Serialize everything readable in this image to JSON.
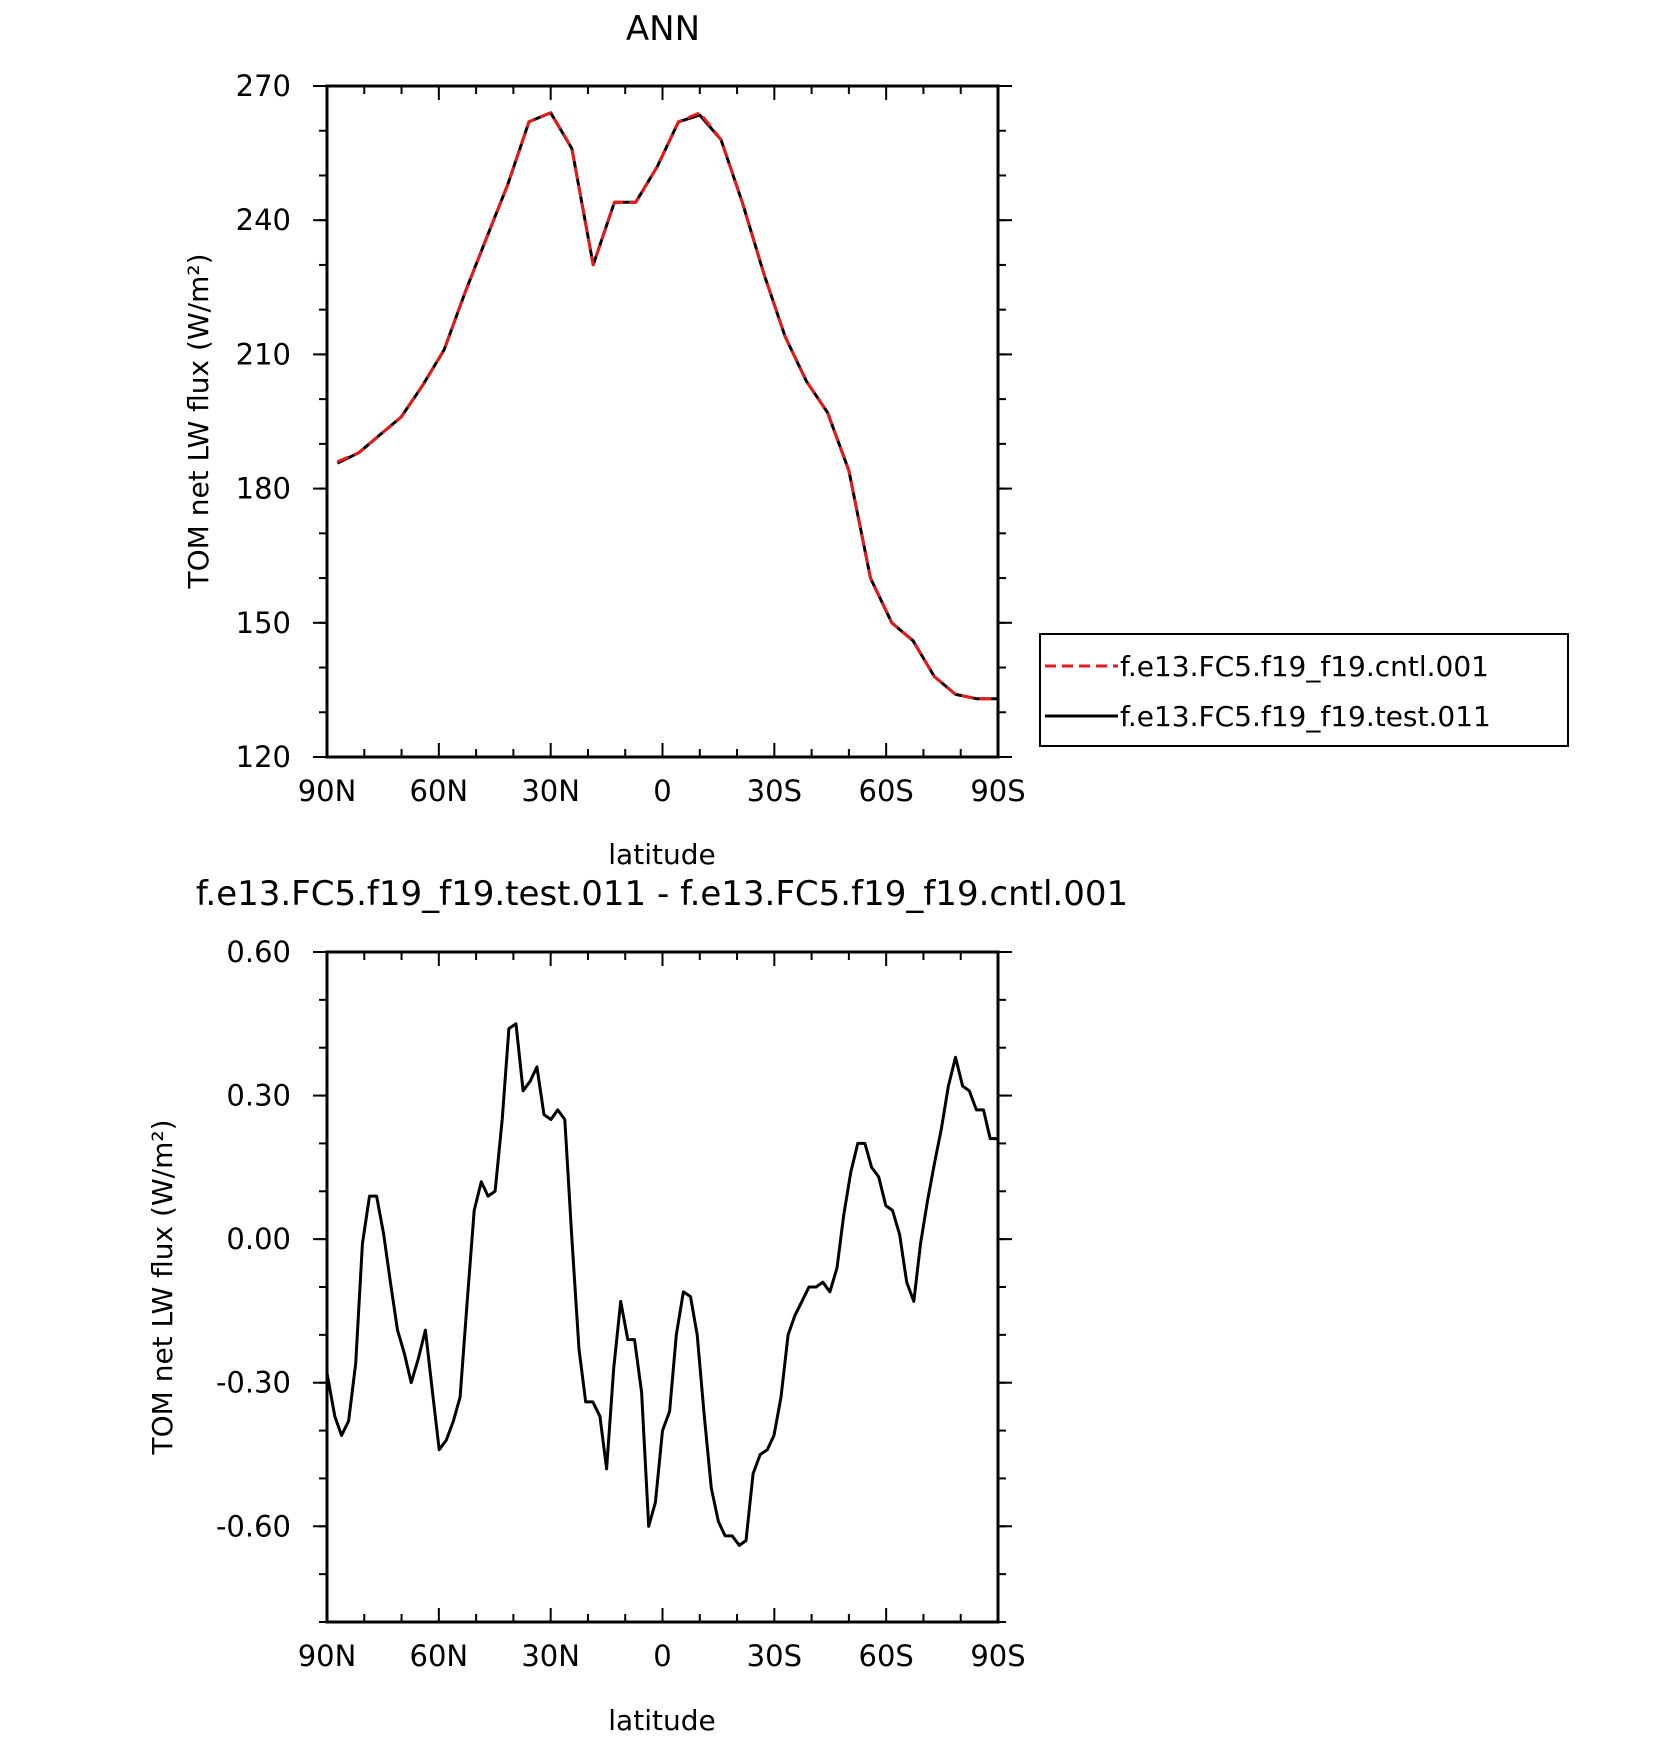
{
  "chart_data": [
    {
      "type": "line",
      "title": "ANN",
      "xlabel": "latitude",
      "ylabel": "TOM net LW flux (W/m²)",
      "xlim": [
        90,
        -90
      ],
      "ylim": [
        120,
        270
      ],
      "xticks": [
        90,
        60,
        30,
        0,
        -30,
        -60,
        -90
      ],
      "xtick_labels": [
        "90N",
        "60N",
        "30N",
        "0",
        "30S",
        "60S",
        "90S"
      ],
      "yticks": [
        120,
        150,
        180,
        210,
        240,
        270
      ],
      "ytick_labels": [
        "120",
        "150",
        "180",
        "210",
        "240",
        "270"
      ],
      "legend": {
        "position": "right"
      },
      "x": [
        87.2,
        81.5,
        75.8,
        70.1,
        64.4,
        58.6,
        52.9,
        47.2,
        41.5,
        35.8,
        30.0,
        24.3,
        18.6,
        12.9,
        7.2,
        1.4,
        -4.3,
        -10.0,
        -15.7,
        -21.4,
        -27.2,
        -32.9,
        -38.6,
        -44.3,
        -50.0,
        -55.8,
        -61.5,
        -67.2,
        -72.9,
        -78.6,
        -84.4,
        -90.0
      ],
      "series": [
        {
          "name": "f.e13.FC5.f19_f19.cntl.001",
          "color": "#e41a1c",
          "dash": true,
          "values": [
            186,
            188,
            192,
            196,
            203,
            211,
            224,
            236,
            248,
            262,
            264,
            256,
            230,
            244,
            244,
            252,
            262,
            264,
            258,
            244,
            228,
            214,
            204,
            197,
            184,
            160,
            150,
            146,
            138,
            134,
            133,
            133
          ]
        },
        {
          "name": "f.e13.FC5.f19_f19.test.011",
          "color": "#000000",
          "dash": false,
          "values": [
            185.7,
            188,
            192,
            196,
            203,
            211,
            224,
            236,
            248,
            262,
            264,
            256,
            230,
            244,
            244,
            252,
            262,
            263.5,
            258,
            244,
            228,
            214,
            204,
            197,
            184,
            160,
            150,
            146,
            138,
            134,
            133,
            133
          ]
        }
      ]
    },
    {
      "type": "line",
      "title": "f.e13.FC5.f19_f19.test.011 - f.e13.FC5.f19_f19.cntl.001",
      "xlabel": "latitude",
      "ylabel": "TOM net LW flux (W/m²)",
      "xlim": [
        90,
        -90
      ],
      "ylim": [
        -0.8,
        0.6
      ],
      "xticks": [
        90,
        60,
        30,
        0,
        -30,
        -60,
        -90
      ],
      "xtick_labels": [
        "90N",
        "60N",
        "30N",
        "0",
        "30S",
        "60S",
        "90S"
      ],
      "yticks": [
        0.6,
        0.3,
        0.0,
        -0.3,
        -0.6
      ],
      "ytick_labels": [
        "0.60",
        "0.30",
        "0.00",
        "-0.30",
        "-0.60"
      ],
      "x": [
        90,
        87.9,
        86.1,
        84.2,
        82.3,
        80.5,
        78.6,
        76.7,
        74.8,
        73.0,
        71.1,
        69.2,
        67.4,
        65.5,
        63.6,
        61.7,
        59.9,
        58.0,
        56.1,
        54.3,
        52.4,
        50.5,
        48.6,
        46.8,
        44.9,
        43.0,
        41.2,
        39.3,
        37.4,
        35.5,
        33.7,
        31.8,
        29.9,
        28.1,
        26.2,
        24.3,
        22.4,
        20.6,
        18.7,
        16.8,
        15.0,
        13.1,
        11.2,
        9.3,
        7.5,
        5.6,
        3.7,
        1.9,
        0.0,
        -1.9,
        -3.7,
        -5.6,
        -7.5,
        -9.3,
        -11.2,
        -13.1,
        -15.0,
        -16.8,
        -18.7,
        -20.6,
        -22.4,
        -24.3,
        -26.2,
        -28.1,
        -29.9,
        -31.8,
        -33.7,
        -35.5,
        -37.4,
        -39.3,
        -41.2,
        -43.0,
        -44.9,
        -46.8,
        -48.6,
        -50.5,
        -52.4,
        -54.3,
        -56.1,
        -58.0,
        -59.9,
        -61.7,
        -63.6,
        -65.5,
        -67.4,
        -69.2,
        -71.1,
        -73.0,
        -74.8,
        -76.7,
        -78.6,
        -80.5,
        -82.3,
        -84.2,
        -86.1,
        -87.9,
        -90.0
      ],
      "series": [
        {
          "name": "",
          "color": "#000000",
          "values": [
            -0.28,
            -0.37,
            -0.41,
            -0.38,
            -0.26,
            -0.01,
            0.09,
            0.09,
            0.01,
            -0.09,
            -0.19,
            -0.24,
            -0.3,
            -0.25,
            -0.19,
            -0.32,
            -0.44,
            -0.42,
            -0.38,
            -0.33,
            -0.13,
            0.06,
            0.12,
            0.09,
            0.1,
            0.25,
            0.44,
            0.45,
            0.31,
            0.33,
            0.36,
            0.26,
            0.25,
            0.27,
            0.25,
            0.0,
            -0.23,
            -0.34,
            -0.34,
            -0.37,
            -0.48,
            -0.27,
            -0.13,
            -0.21,
            -0.21,
            -0.32,
            -0.6,
            -0.55,
            -0.4,
            -0.36,
            -0.2,
            -0.11,
            -0.12,
            -0.2,
            -0.37,
            -0.52,
            -0.59,
            -0.62,
            -0.62,
            -0.64,
            -0.63,
            -0.49,
            -0.45,
            -0.44,
            -0.41,
            -0.33,
            -0.2,
            -0.16,
            -0.13,
            -0.1,
            -0.1,
            -0.09,
            -0.11,
            -0.06,
            0.05,
            0.14,
            0.2,
            0.2,
            0.15,
            0.13,
            0.07,
            0.06,
            0.01,
            -0.09,
            -0.13,
            -0.01,
            0.08,
            0.16,
            0.23,
            0.32,
            0.38,
            0.32,
            0.31,
            0.27,
            0.27,
            0.21,
            0.21
          ]
        }
      ]
    }
  ]
}
